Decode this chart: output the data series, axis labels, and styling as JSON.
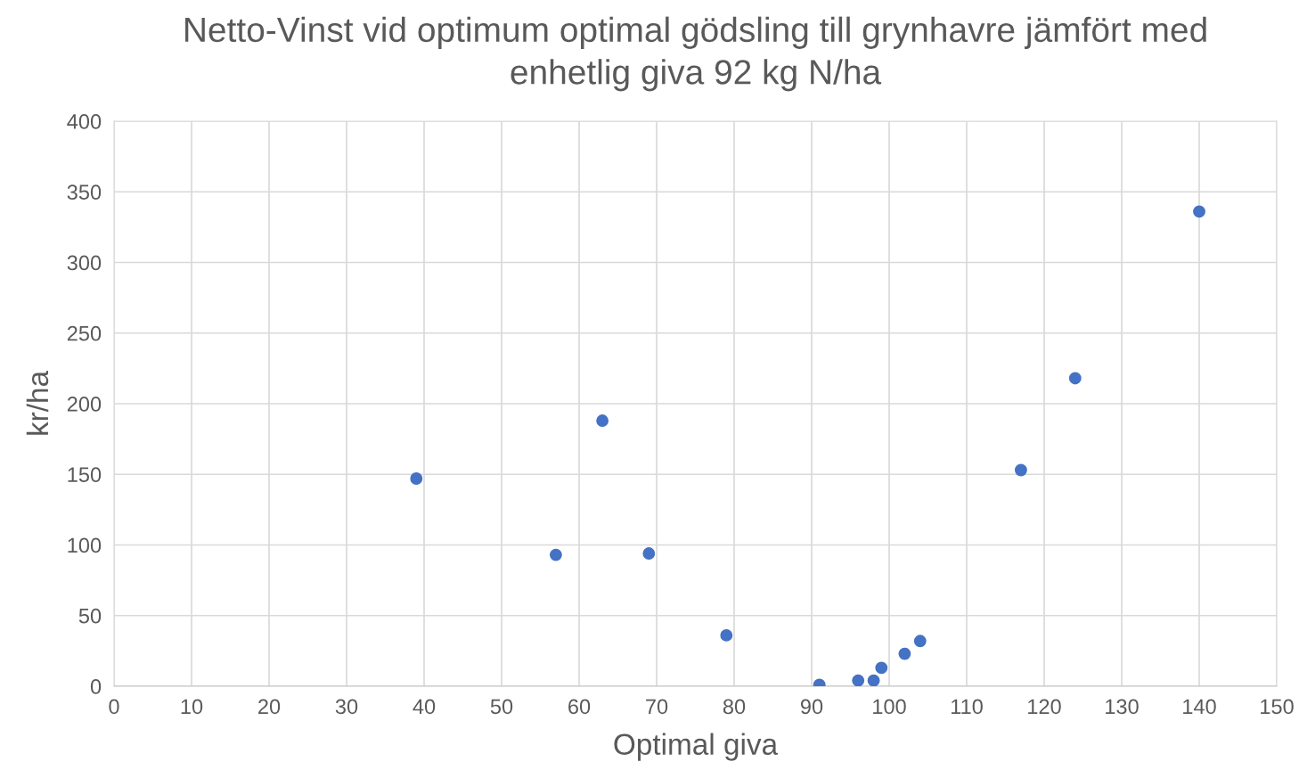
{
  "chart_data": {
    "type": "scatter",
    "title": "Netto-Vinst vid optimum optimal gödsling till grynhavre jämfört med\nenhetlig giva 92 kg N/ha",
    "xlabel": "Optimal giva",
    "ylabel": "kr/ha",
    "series": [
      {
        "color": "#4472c4",
        "x": [
          39,
          57,
          63,
          69,
          79,
          91,
          96,
          98,
          99,
          102,
          104,
          117,
          124,
          140
        ],
        "values": [
          147,
          93,
          188,
          94,
          36,
          1,
          4,
          4,
          13,
          23,
          32,
          153,
          218,
          336
        ]
      }
    ],
    "xlim": [
      0,
      150
    ],
    "xticks": [
      0,
      10,
      20,
      30,
      40,
      50,
      60,
      70,
      80,
      90,
      100,
      110,
      120,
      130,
      140,
      150
    ],
    "ylim": [
      0,
      400
    ],
    "yticks": [
      0,
      50,
      100,
      150,
      200,
      250,
      300,
      350,
      400
    ],
    "grid": true,
    "marker": "circle",
    "legend": false
  }
}
